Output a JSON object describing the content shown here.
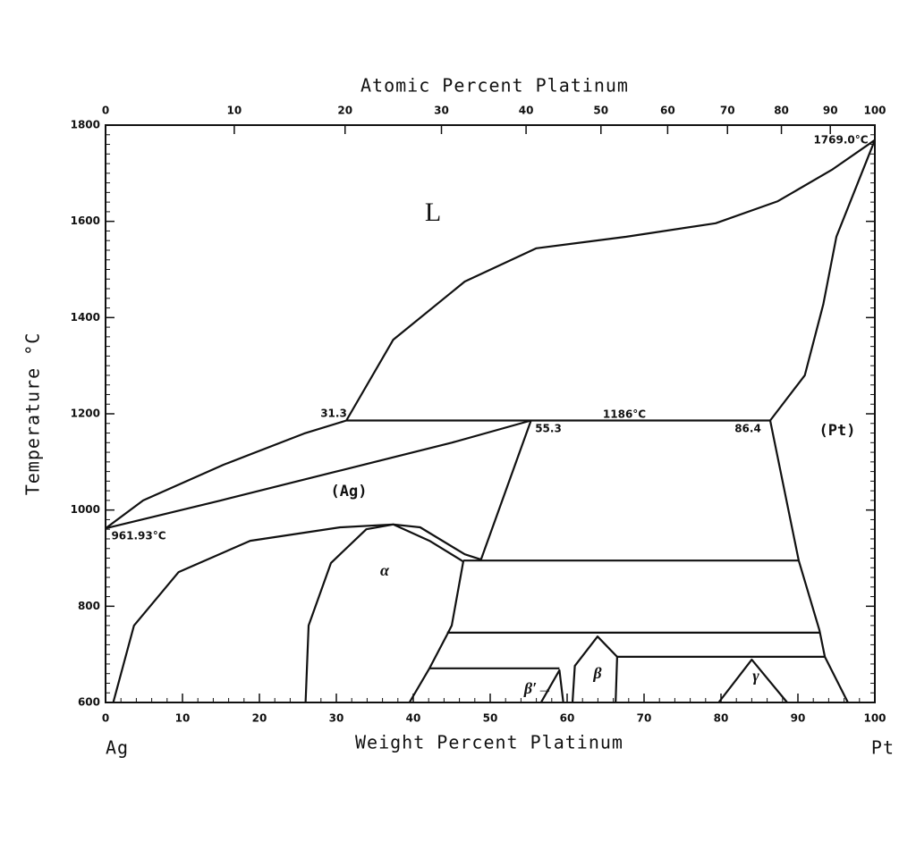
{
  "chart_data": {
    "type": "phase-diagram",
    "x2label": "Atomic Percent Platinum",
    "xlabel": "Weight Percent Platinum",
    "ylabel": "Temperature °C",
    "left_element": "Ag",
    "right_element": "Pt",
    "xlim": [
      0,
      100
    ],
    "ylim": [
      600,
      1800
    ],
    "xticks": [
      0,
      10,
      20,
      30,
      40,
      50,
      60,
      70,
      80,
      90,
      100
    ],
    "x2ticks": [
      0,
      10,
      20,
      30,
      40,
      50,
      60,
      70,
      80,
      90,
      100
    ],
    "yticks": [
      600,
      800,
      1000,
      1200,
      1400,
      1600,
      1800
    ],
    "color": "#111111",
    "annotations": [
      "31.3",
      "55.3",
      "1186°C",
      "86.4",
      "961.93°C",
      "1769.0°C",
      "L",
      "(Ag)",
      "(Pt)",
      "α",
      "β",
      "β′→",
      "γ"
    ],
    "lines": [
      {
        "x": [
          0,
          4.9,
          15.3,
          25.8,
          31.3,
          37.4,
          46.7,
          56,
          67.7,
          79.3,
          87.4,
          94.4,
          100
        ],
        "y": [
          961.93,
          1020,
          1094,
          1159,
          1186,
          1354,
          1475,
          1544,
          1568,
          1596,
          1642,
          1707,
          1769
        ]
      },
      {
        "x": [
          0,
          15,
          30,
          45,
          55.3
        ],
        "y": [
          961.93,
          1020,
          1080,
          1140,
          1186
        ]
      },
      {
        "x": [
          31.3,
          55.3,
          86.4
        ],
        "y": [
          1186,
          1186,
          1186
        ]
      },
      {
        "x": [
          86.4,
          90.9,
          93.3,
          95,
          100
        ],
        "y": [
          1186,
          1280,
          1428,
          1568,
          1769
        ]
      },
      {
        "x": [
          55.3,
          48.8
        ],
        "y": [
          1186,
          897
        ]
      },
      {
        "x": [
          86.4,
          90.1,
          92.8,
          93.5,
          96.5
        ],
        "y": [
          1186,
          895,
          750,
          695,
          600
        ]
      },
      {
        "x": [
          1,
          3.7,
          9.5,
          18.8,
          30.5,
          37.4,
          40.9,
          46.7,
          48.8
        ],
        "y": [
          600,
          760,
          871,
          936,
          964,
          970,
          964,
          908,
          897
        ]
      },
      {
        "x": [
          26,
          26.4,
          29.3,
          33.9,
          37.4,
          42.1,
          46.5,
          45,
          44.4
        ],
        "y": [
          600,
          760,
          890,
          960,
          970,
          936,
          893,
          760,
          741
        ]
      },
      {
        "x": [
          46.5,
          90.1
        ],
        "y": [
          895,
          895
        ]
      },
      {
        "x": [
          44.4,
          92.8
        ],
        "y": [
          745,
          745
        ]
      },
      {
        "x": [
          39.5,
          42.1,
          44.4
        ],
        "y": [
          600,
          671,
          741
        ]
      },
      {
        "x": [
          42.1,
          59
        ],
        "y": [
          671,
          671
        ]
      },
      {
        "x": [
          60.7,
          61,
          63.95,
          66.5,
          66.3
        ],
        "y": [
          600,
          676,
          737,
          695,
          600
        ]
      },
      {
        "x": [
          66.5,
          93.5
        ],
        "y": [
          695,
          695
        ]
      },
      {
        "x": [
          56.6,
          59,
          59.5
        ],
        "y": [
          600,
          667,
          600
        ]
      },
      {
        "x": [
          79.7,
          84,
          88.6
        ],
        "y": [
          600,
          689,
          600
        ]
      }
    ]
  }
}
